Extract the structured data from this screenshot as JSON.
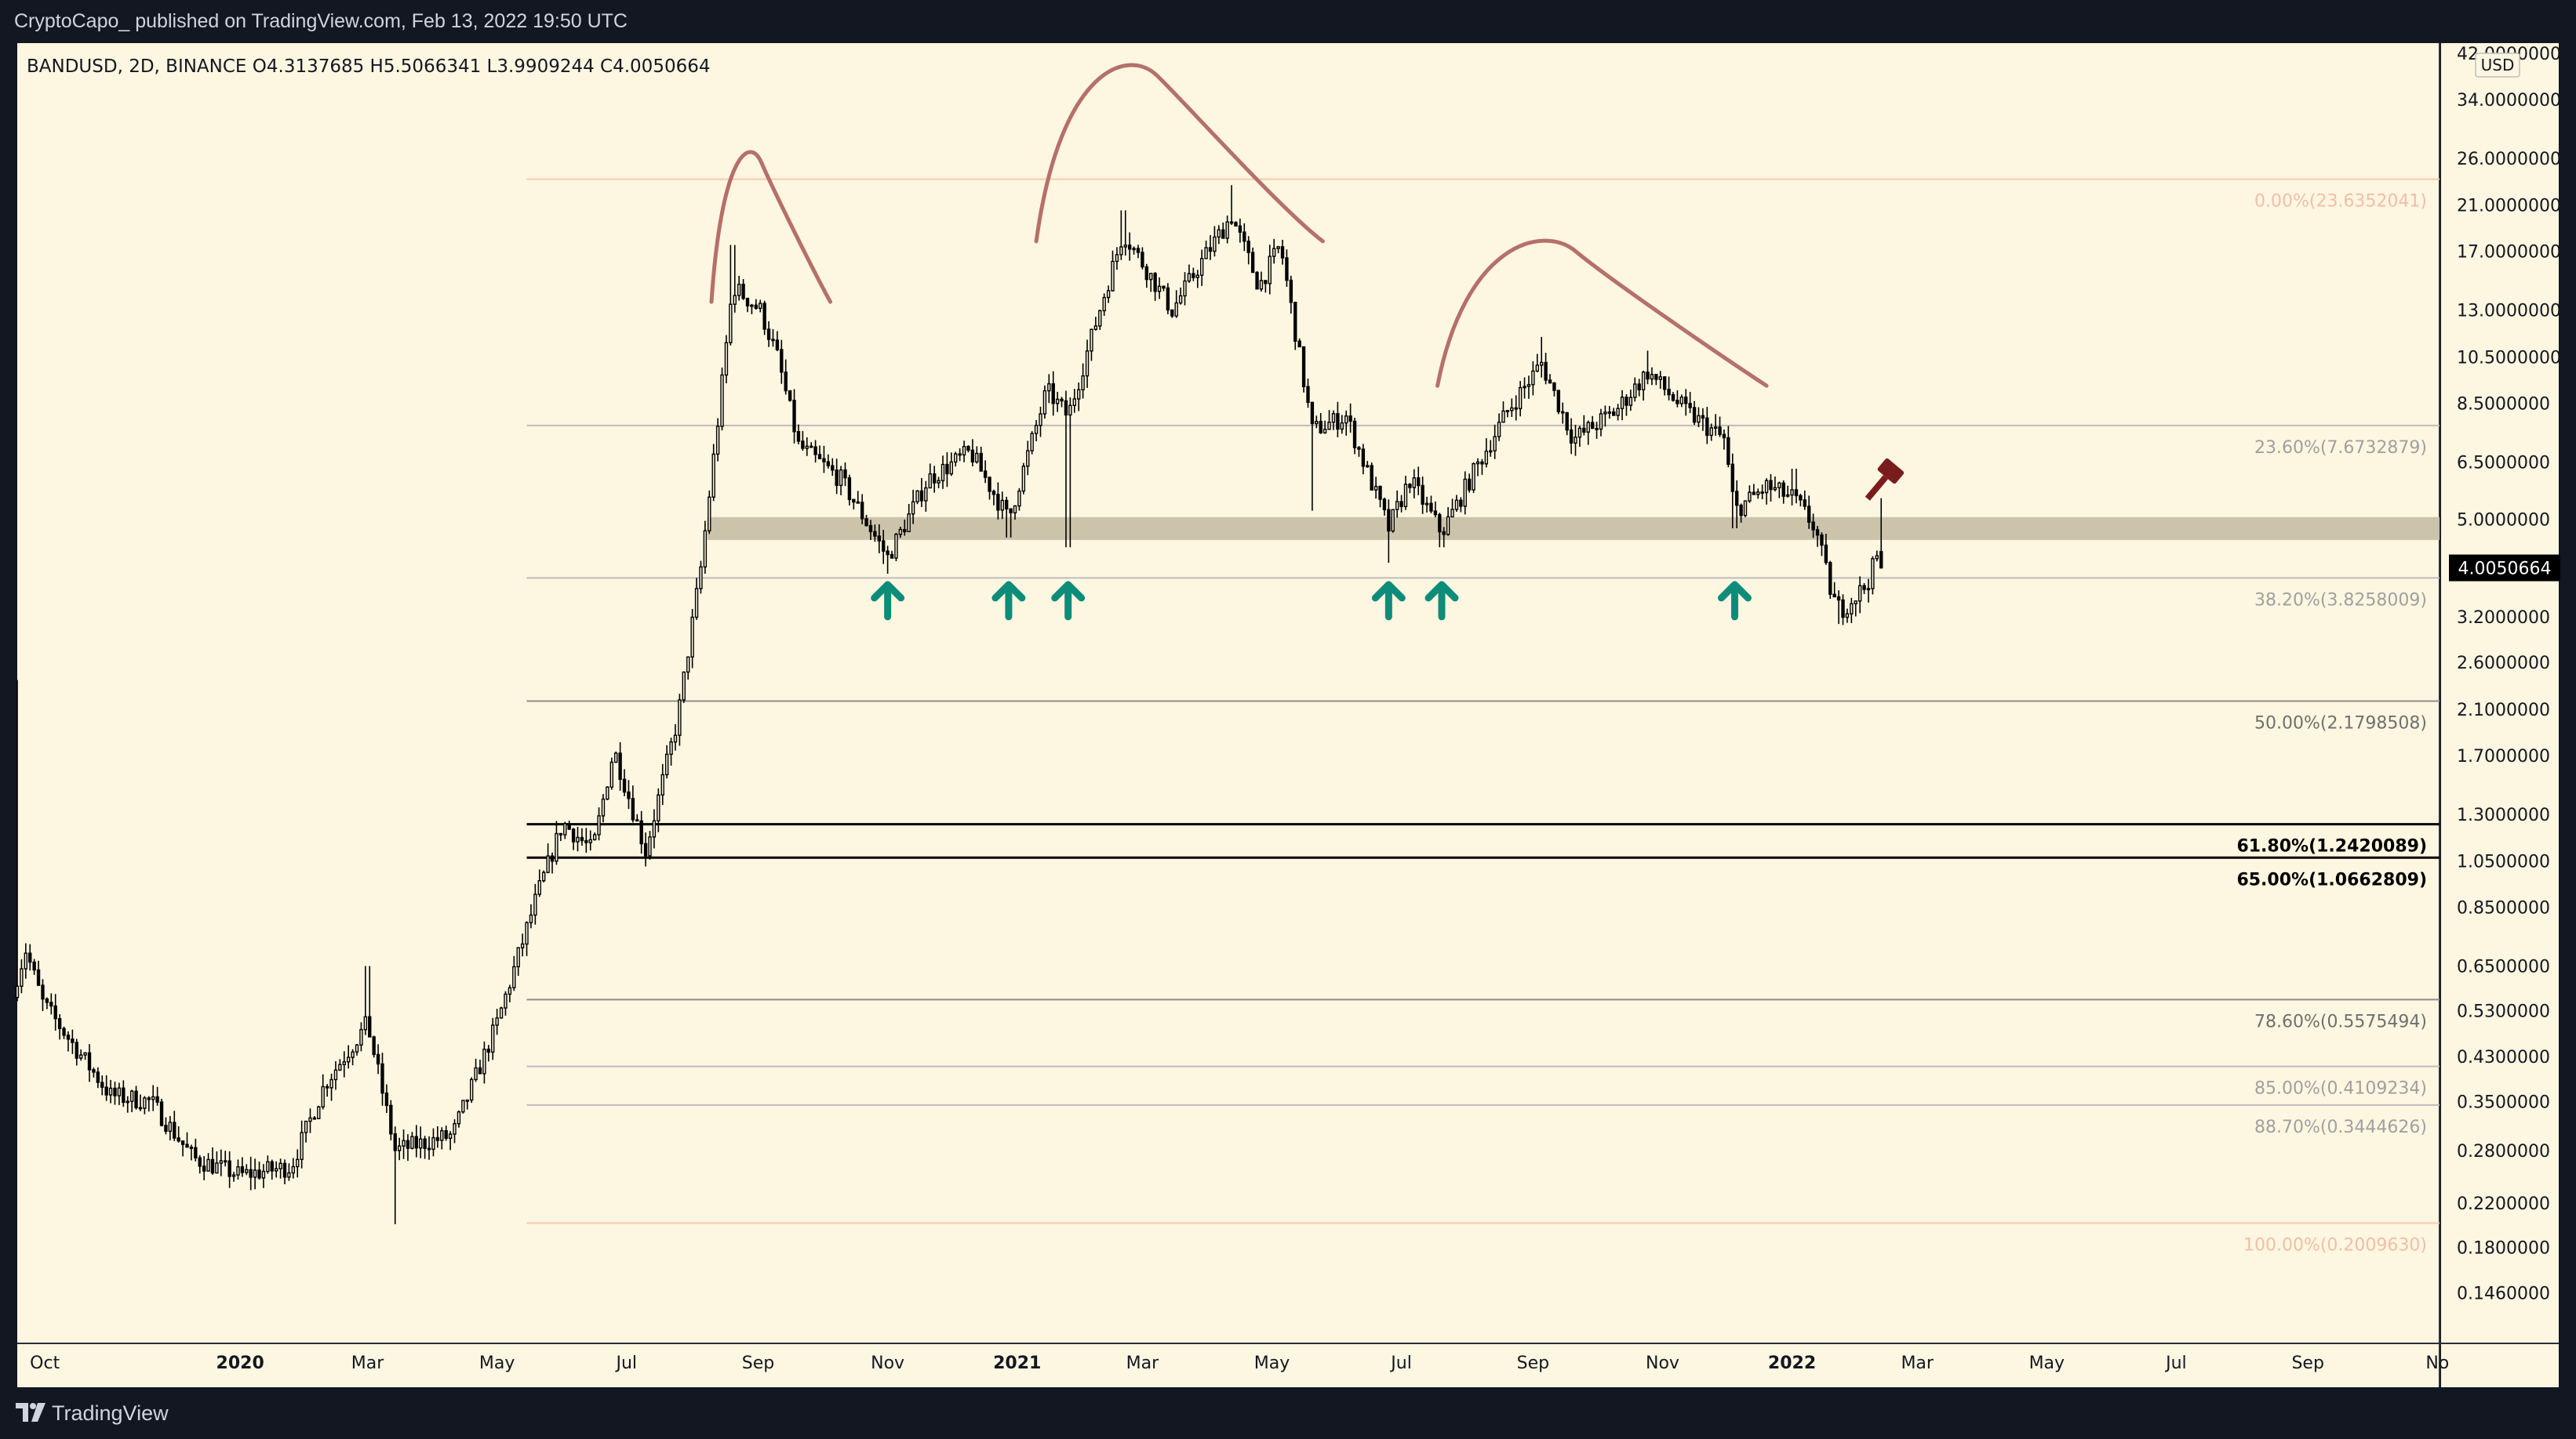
{
  "header": {
    "published_by": "CryptoCapo_  published on TradingView.com, Feb 13, 2022 19:50 UTC"
  },
  "footer": {
    "brand": "TradingView"
  },
  "colors": {
    "background": "#FDF6E0",
    "candle": "#000000",
    "fib_line": "#9E9E9E",
    "fib_strong": "#000000",
    "fib_faint": "#F5C9B0",
    "support_zone": "#C9C0A8",
    "arrow": "#0E8C7A",
    "arc": "#B5706A",
    "hammer": "#7A1C1C",
    "frame": "#131722"
  },
  "icons": {
    "support_marker": "arrow-up-icon",
    "auction": "gavel-icon",
    "brand": "tradingview-logo-icon"
  },
  "chart_data": {
    "type": "candlestick",
    "symbol_line": "BANDUSD, 2D, BINANCE  O4.3137685  H5.5066341  L3.9909244  C4.0050664",
    "symbol": "BANDUSD",
    "interval": "2D",
    "exchange": "BINANCE",
    "ohlc": {
      "open": 4.3137685,
      "high": 5.5066341,
      "low": 3.9909244,
      "close": 4.0050664
    },
    "current_price_label": "4.0050664",
    "current_price": 4.0050664,
    "currency": "USD",
    "y_scale": "log",
    "ylim": [
      0.116,
      44
    ],
    "y_ticks": [
      {
        "label": "42.0000000",
        "value": 42
      },
      {
        "label": "34.0000000",
        "value": 34
      },
      {
        "label": "26.0000000",
        "value": 26
      },
      {
        "label": "21.0000000",
        "value": 21
      },
      {
        "label": "17.0000000",
        "value": 17
      },
      {
        "label": "13.0000000",
        "value": 13
      },
      {
        "label": "10.5000000",
        "value": 10.5
      },
      {
        "label": "8.5000000",
        "value": 8.5
      },
      {
        "label": "6.5000000",
        "value": 6.5
      },
      {
        "label": "5.0000000",
        "value": 5
      },
      {
        "label": "3.2000000",
        "value": 3.2
      },
      {
        "label": "2.6000000",
        "value": 2.6
      },
      {
        "label": "2.1000000",
        "value": 2.1
      },
      {
        "label": "1.7000000",
        "value": 1.7
      },
      {
        "label": "1.3000000",
        "value": 1.3
      },
      {
        "label": "1.0500000",
        "value": 1.05
      },
      {
        "label": "0.8500000",
        "value": 0.85
      },
      {
        "label": "0.6500000",
        "value": 0.65
      },
      {
        "label": "0.5300000",
        "value": 0.53
      },
      {
        "label": "0.4300000",
        "value": 0.43
      },
      {
        "label": "0.3500000",
        "value": 0.35
      },
      {
        "label": "0.2800000",
        "value": 0.28
      },
      {
        "label": "0.2200000",
        "value": 0.22
      },
      {
        "label": "0.1800000",
        "value": 0.18
      },
      {
        "label": "0.1460000",
        "value": 0.146
      }
    ],
    "x_range": [
      "2019-09-18",
      "2022-11-02"
    ],
    "x_ticks": [
      {
        "label": "Oct",
        "date": "2019-10-01"
      },
      {
        "label": "2020",
        "date": "2020-01-01",
        "bold": true
      },
      {
        "label": "Mar",
        "date": "2020-03-01"
      },
      {
        "label": "May",
        "date": "2020-05-01"
      },
      {
        "label": "Jul",
        "date": "2020-07-01"
      },
      {
        "label": "Sep",
        "date": "2020-09-01"
      },
      {
        "label": "Nov",
        "date": "2020-11-01"
      },
      {
        "label": "2021",
        "date": "2021-01-01",
        "bold": true
      },
      {
        "label": "Mar",
        "date": "2021-03-01"
      },
      {
        "label": "May",
        "date": "2021-05-01"
      },
      {
        "label": "Jul",
        "date": "2021-07-01"
      },
      {
        "label": "Sep",
        "date": "2021-09-01"
      },
      {
        "label": "Nov",
        "date": "2021-11-01"
      },
      {
        "label": "2022",
        "date": "2022-01-01",
        "bold": true
      },
      {
        "label": "Mar",
        "date": "2022-03-01"
      },
      {
        "label": "May",
        "date": "2022-05-01"
      },
      {
        "label": "Jul",
        "date": "2022-07-01"
      },
      {
        "label": "Sep",
        "date": "2022-09-01"
      },
      {
        "label": "No",
        "date": "2022-11-01"
      }
    ],
    "price_path": [
      {
        "date": "2019-09-18",
        "value": 0.62,
        "high": 2.4
      },
      {
        "date": "2019-09-22",
        "value": 0.7
      },
      {
        "date": "2019-09-30",
        "value": 0.55
      },
      {
        "date": "2019-10-15",
        "value": 0.45
      },
      {
        "date": "2019-11-01",
        "value": 0.36
      },
      {
        "date": "2019-11-20",
        "value": 0.35
      },
      {
        "date": "2019-12-10",
        "value": 0.27
      },
      {
        "date": "2020-01-01",
        "value": 0.25
      },
      {
        "date": "2020-01-25",
        "value": 0.26
      },
      {
        "date": "2020-02-10",
        "value": 0.38
      },
      {
        "date": "2020-03-01",
        "value": 0.5,
        "high": 0.65
      },
      {
        "date": "2020-03-14",
        "value": 0.28,
        "low": 0.2
      },
      {
        "date": "2020-04-10",
        "value": 0.3
      },
      {
        "date": "2020-05-01",
        "value": 0.5
      },
      {
        "date": "2020-05-20",
        "value": 0.9
      },
      {
        "date": "2020-06-01",
        "value": 1.25
      },
      {
        "date": "2020-06-15",
        "value": 1.1
      },
      {
        "date": "2020-06-25",
        "value": 1.75
      },
      {
        "date": "2020-07-10",
        "value": 1.1
      },
      {
        "date": "2020-07-25",
        "value": 2.0
      },
      {
        "date": "2020-08-05",
        "value": 4.0
      },
      {
        "date": "2020-08-14",
        "value": 8.5
      },
      {
        "date": "2020-08-20",
        "value": 14.5,
        "high": 17.5
      },
      {
        "date": "2020-09-02",
        "value": 13.0
      },
      {
        "date": "2020-09-10",
        "value": 10.5
      },
      {
        "date": "2020-09-20",
        "value": 7.0
      },
      {
        "date": "2020-10-10",
        "value": 6.0
      },
      {
        "date": "2020-11-01",
        "value": 4.2,
        "low": 3.9
      },
      {
        "date": "2020-11-20",
        "value": 6.0
      },
      {
        "date": "2020-12-10",
        "value": 6.8
      },
      {
        "date": "2020-12-28",
        "value": 5.0,
        "low": 4.6
      },
      {
        "date": "2021-01-15",
        "value": 9.0
      },
      {
        "date": "2021-01-25",
        "value": 8.0,
        "low": 4.4
      },
      {
        "date": "2021-02-10",
        "value": 13.5
      },
      {
        "date": "2021-02-20",
        "value": 18.5,
        "high": 20.5
      },
      {
        "date": "2021-03-15",
        "value": 13.0
      },
      {
        "date": "2021-03-30",
        "value": 16.5
      },
      {
        "date": "2021-04-12",
        "value": 20.0,
        "high": 23.0
      },
      {
        "date": "2021-04-25",
        "value": 14.5
      },
      {
        "date": "2021-05-05",
        "value": 17.5
      },
      {
        "date": "2021-05-20",
        "value": 7.5,
        "low": 5.2
      },
      {
        "date": "2021-06-05",
        "value": 8.0
      },
      {
        "date": "2021-06-25",
        "value": 4.8,
        "low": 4.1
      },
      {
        "date": "2021-07-05",
        "value": 6.0
      },
      {
        "date": "2021-07-20",
        "value": 4.7,
        "low": 4.4
      },
      {
        "date": "2021-08-05",
        "value": 6.3
      },
      {
        "date": "2021-08-20",
        "value": 8.2
      },
      {
        "date": "2021-09-05",
        "value": 10.2,
        "high": 11.5
      },
      {
        "date": "2021-09-20",
        "value": 7.2
      },
      {
        "date": "2021-10-10",
        "value": 8.2
      },
      {
        "date": "2021-10-25",
        "value": 9.8,
        "high": 10.8
      },
      {
        "date": "2021-11-12",
        "value": 8.2
      },
      {
        "date": "2021-11-30",
        "value": 7.2
      },
      {
        "date": "2021-12-05",
        "value": 5.2,
        "low": 4.8
      },
      {
        "date": "2021-12-20",
        "value": 5.8
      },
      {
        "date": "2022-01-02",
        "value": 5.5,
        "high": 6.3
      },
      {
        "date": "2022-01-12",
        "value": 4.8
      },
      {
        "date": "2022-01-20",
        "value": 3.5
      },
      {
        "date": "2022-01-24",
        "value": 3.3,
        "low": 3.1
      },
      {
        "date": "2022-02-05",
        "value": 3.7
      },
      {
        "date": "2022-02-11",
        "value": 4.3137685
      },
      {
        "date": "2022-02-13",
        "value": 4.0050664,
        "high": 5.5066341,
        "low": 3.9909244
      }
    ],
    "fib_levels": [
      {
        "label": "0.00%(23.6352041)",
        "value": 23.6352041,
        "style": "faint"
      },
      {
        "label": "23.60%(7.6732879)",
        "value": 7.6732879,
        "style": "light"
      },
      {
        "label": "38.20%(3.8258009)",
        "value": 3.8258009,
        "style": "light"
      },
      {
        "label": "50.00%(2.1798508)",
        "value": 2.1798508,
        "style": "mid"
      },
      {
        "label": "61.80%(1.2420089)",
        "value": 1.2420089,
        "style": "strong"
      },
      {
        "label": "65.00%(1.0662809)",
        "value": 1.0662809,
        "style": "strong"
      },
      {
        "label": "78.60%(0.5575494)",
        "value": 0.5575494,
        "style": "mid"
      },
      {
        "label": "85.00%(0.4109234)",
        "value": 0.4109234,
        "style": "light"
      },
      {
        "label": "88.70%(0.3444626)",
        "value": 0.3444626,
        "style": "light"
      },
      {
        "label": "100.00%(0.2009630)",
        "value": 0.200963,
        "style": "faint"
      }
    ],
    "fib_start_date": "2020-05-15",
    "support_zone": {
      "from": 4.55,
      "to": 5.05,
      "start_date": "2020-08-08"
    },
    "arcs": [
      {
        "start": "2020-08-10",
        "end": "2020-10-05",
        "low": 13.5,
        "high": 25.5
      },
      {
        "start": "2021-01-10",
        "end": "2021-05-25",
        "low": 17.8,
        "high": 38.0
      },
      {
        "start": "2021-07-18",
        "end": "2021-12-20",
        "low": 9.2,
        "high": 17.0
      }
    ],
    "support_arrows": [
      "2020-11-01",
      "2020-12-28",
      "2021-01-25",
      "2021-06-25",
      "2021-07-20",
      "2021-12-05"
    ],
    "gavel_date": "2022-02-18"
  }
}
